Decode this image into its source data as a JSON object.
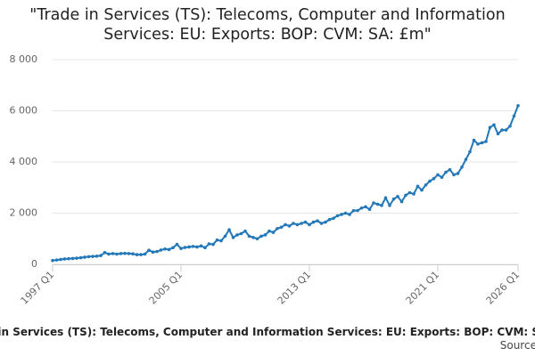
{
  "chart_data": {
    "type": "line",
    "title": "\"Trade in Services (TS): Telecoms, Computer and Information Services: EU: Exports: BOP: CVM: SA: £m\"",
    "x_label": "Trade in Services (TS): Telecoms, Computer and Information Services: EU: Exports: BOP: CVM: SA: £m",
    "source": "Source:",
    "categories": [
      "1997 Q1",
      null,
      null,
      null,
      null,
      null,
      null,
      null,
      null,
      null,
      null,
      null,
      null,
      null,
      null,
      null,
      null,
      null,
      null,
      null,
      null,
      null,
      null,
      null,
      null,
      null,
      null,
      null,
      null,
      null,
      null,
      null,
      "2005 Q1",
      null,
      null,
      null,
      null,
      null,
      null,
      null,
      null,
      null,
      null,
      null,
      null,
      null,
      null,
      null,
      null,
      null,
      null,
      null,
      null,
      null,
      null,
      null,
      null,
      null,
      null,
      null,
      null,
      null,
      null,
      null,
      "2013 Q1",
      null,
      null,
      null,
      null,
      null,
      null,
      null,
      null,
      null,
      null,
      null,
      null,
      null,
      null,
      null,
      null,
      null,
      null,
      null,
      null,
      null,
      null,
      null,
      null,
      null,
      null,
      null,
      null,
      null,
      null,
      null,
      "2021 Q1",
      null,
      null,
      null,
      null,
      null,
      null,
      null,
      null,
      null,
      null,
      null,
      null,
      null,
      null,
      null,
      null,
      null,
      null,
      null,
      "2026 Q1"
    ],
    "series": [
      {
        "name": "Exports",
        "color": "#2278b8",
        "values": [
          150,
          170,
          190,
          210,
          220,
          230,
          240,
          260,
          280,
          300,
          310,
          320,
          340,
          460,
          400,
          420,
          400,
          420,
          430,
          420,
          410,
          380,
          380,
          400,
          550,
          480,
          500,
          560,
          600,
          580,
          650,
          780,
          620,
          660,
          680,
          700,
          680,
          720,
          650,
          800,
          780,
          950,
          920,
          1100,
          1350,
          1050,
          1150,
          1200,
          1300,
          1100,
          1050,
          1000,
          1100,
          1150,
          1300,
          1250,
          1400,
          1450,
          1550,
          1500,
          1600,
          1550,
          1600,
          1650,
          1550,
          1650,
          1700,
          1600,
          1650,
          1750,
          1800,
          1900,
          1950,
          2000,
          1950,
          2100,
          2100,
          2200,
          2250,
          2150,
          2400,
          2350,
          2300,
          2600,
          2300,
          2550,
          2650,
          2450,
          2700,
          2800,
          2750,
          3050,
          2900,
          3100,
          3250,
          3350,
          3500,
          3400,
          3600,
          3700,
          3500,
          3550,
          3800,
          4100,
          4400,
          4850,
          4700,
          4750,
          4800,
          5350,
          5450,
          5100,
          5250,
          5250,
          5400,
          5800,
          6200
        ]
      }
    ],
    "ylim": [
      0,
      8000
    ],
    "yticks": [
      0,
      {
        "value": 2000,
        "label": "2 000"
      },
      {
        "value": 4000,
        "label": "4 000"
      },
      {
        "value": 6000,
        "label": "6 000"
      },
      {
        "value": 8000,
        "label": "8 000"
      }
    ],
    "grid": true
  }
}
